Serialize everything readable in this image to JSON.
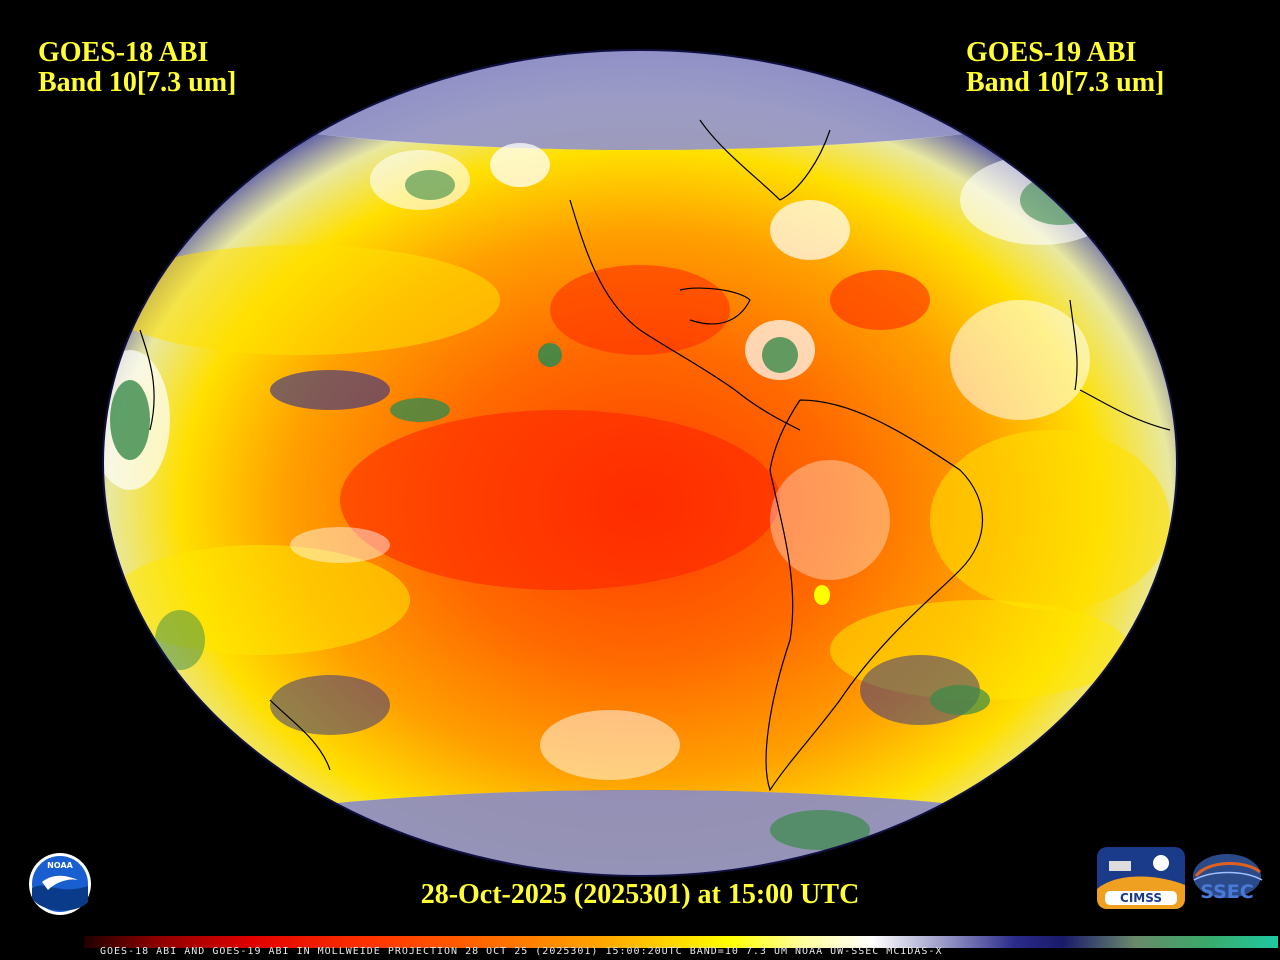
{
  "header": {
    "left_line1": "GOES-18 ABI",
    "left_line2": "Band 10[7.3 um]",
    "right_line1": "GOES-19 ABI",
    "right_line2": "Band 10[7.3 um]"
  },
  "timestamp": "28-Oct-2025 (2025301) at 15:00 UTC",
  "footer": "GOES-18 ABI AND GOES-19 ABI IN MOLLWEIDE PROJECTION 28 OCT 25 (2025301) 15:00:20UTC BAND=10 7.3 UM NOAA UW-SSEC MCIDAS-X",
  "logos": {
    "noaa": "NOAA",
    "cimss": "CIMSS",
    "ssec": "SSEC"
  },
  "colors": {
    "label_yellow": "#ffff33",
    "dry_red": "#ff3300",
    "mid_orange": "#ff9900",
    "moist_yellow": "#ffff00",
    "cloud_white": "#ffffff",
    "cold_navy": "#1a1a7a",
    "cold_green": "#3a8a4a"
  }
}
